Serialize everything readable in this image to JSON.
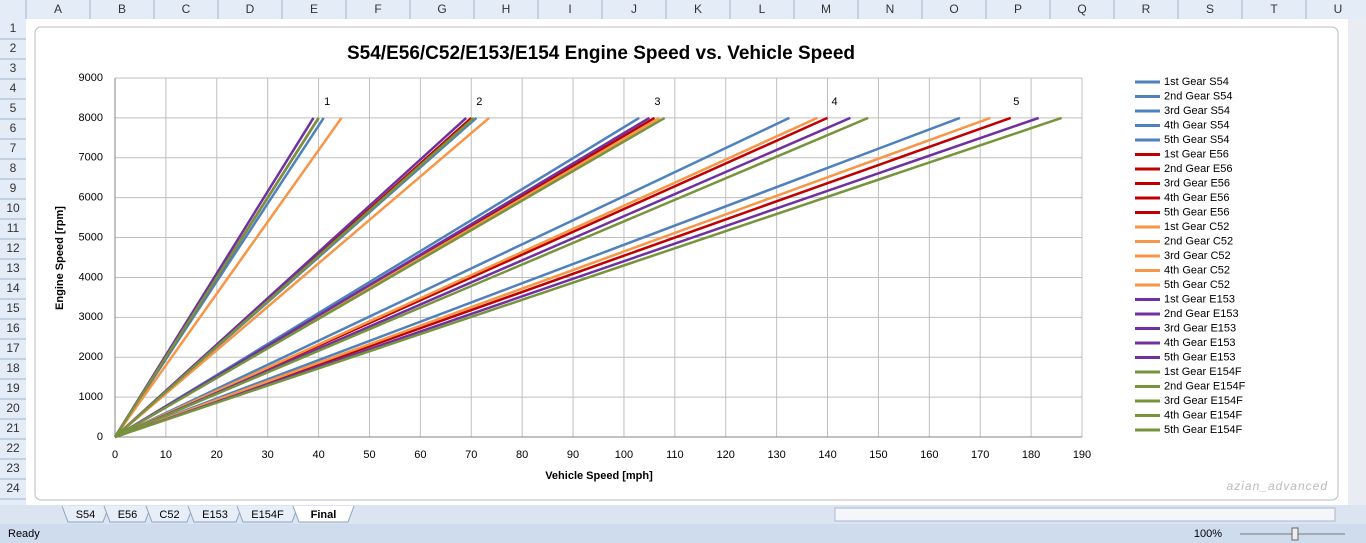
{
  "spreadsheet": {
    "columns": [
      "A",
      "B",
      "C",
      "D",
      "E",
      "F",
      "G",
      "H",
      "I",
      "J",
      "K",
      "L",
      "M",
      "N",
      "O",
      "P",
      "Q",
      "R",
      "S",
      "T",
      "U"
    ],
    "rows": [
      1,
      2,
      3,
      4,
      5,
      6,
      7,
      8,
      9,
      10,
      11,
      12,
      13,
      14,
      15,
      16,
      17,
      18,
      19,
      20,
      21,
      22,
      23,
      24
    ],
    "tabs": [
      "S54",
      "E56",
      "C52",
      "E153",
      "E154F",
      "Final"
    ],
    "status": "Ready",
    "zoom": "100%"
  },
  "watermark": "azian_advanced",
  "chart_data": {
    "type": "line",
    "title": "S54/E56/C52/E153/E154 Engine Speed vs. Vehicle Speed",
    "x_label": "Vehicle Speed [mph]",
    "y_label": "Engine Speed [rpm]",
    "xlim": [
      0,
      190
    ],
    "ylim": [
      0,
      9000
    ],
    "xticks": [
      0,
      10,
      20,
      30,
      40,
      50,
      60,
      70,
      80,
      90,
      100,
      110,
      120,
      130,
      140,
      150,
      160,
      170,
      180,
      190
    ],
    "yticks": [
      0,
      1000,
      2000,
      3000,
      4000,
      5000,
      6000,
      7000,
      8000,
      9000
    ],
    "grid": true,
    "legend": "right",
    "annotations": [
      "1",
      "2",
      "3",
      "4",
      "5"
    ],
    "series": [
      {
        "name": "1st Gear S54",
        "color": "#4f81bd",
        "x": [
          0,
          41
        ],
        "values": [
          0,
          8000
        ]
      },
      {
        "name": "2nd Gear S54",
        "color": "#4f81bd",
        "x": [
          0,
          71
        ],
        "values": [
          0,
          8000
        ]
      },
      {
        "name": "3rd Gear S54",
        "color": "#4f81bd",
        "x": [
          0,
          103
        ],
        "values": [
          0,
          8000
        ]
      },
      {
        "name": "4th Gear S54",
        "color": "#4f81bd",
        "x": [
          0,
          132.5
        ],
        "values": [
          0,
          8000
        ]
      },
      {
        "name": "5th Gear S54",
        "color": "#4f81bd",
        "x": [
          0,
          166
        ],
        "values": [
          0,
          8000
        ]
      },
      {
        "name": "1st Gear E56",
        "color": "#c00000",
        "x": [
          0,
          40
        ],
        "values": [
          0,
          8000
        ]
      },
      {
        "name": "2nd Gear E56",
        "color": "#c00000",
        "x": [
          0,
          70
        ],
        "values": [
          0,
          8000
        ]
      },
      {
        "name": "3rd Gear E56",
        "color": "#c00000",
        "x": [
          0,
          106
        ],
        "values": [
          0,
          8000
        ]
      },
      {
        "name": "4th Gear E56",
        "color": "#c00000",
        "x": [
          0,
          140
        ],
        "values": [
          0,
          8000
        ]
      },
      {
        "name": "5th Gear E56",
        "color": "#c00000",
        "x": [
          0,
          176
        ],
        "values": [
          0,
          8000
        ]
      },
      {
        "name": "1st Gear C52",
        "color": "#f79646",
        "x": [
          0,
          44.5
        ],
        "values": [
          0,
          8000
        ]
      },
      {
        "name": "2nd Gear C52",
        "color": "#f79646",
        "x": [
          0,
          73.5
        ],
        "values": [
          0,
          8000
        ]
      },
      {
        "name": "3rd Gear C52",
        "color": "#f79646",
        "x": [
          0,
          107
        ],
        "values": [
          0,
          8000
        ]
      },
      {
        "name": "4th Gear C52",
        "color": "#f79646",
        "x": [
          0,
          138
        ],
        "values": [
          0,
          8000
        ]
      },
      {
        "name": "5th Gear C52",
        "color": "#f79646",
        "x": [
          0,
          172
        ],
        "values": [
          0,
          8000
        ]
      },
      {
        "name": "1st Gear E153",
        "color": "#7030a0",
        "x": [
          0,
          39
        ],
        "values": [
          0,
          8000
        ]
      },
      {
        "name": "2nd Gear E153",
        "color": "#7030a0",
        "x": [
          0,
          69
        ],
        "values": [
          0,
          8000
        ]
      },
      {
        "name": "3rd Gear E153",
        "color": "#7030a0",
        "x": [
          0,
          105
        ],
        "values": [
          0,
          8000
        ]
      },
      {
        "name": "4th Gear E153",
        "color": "#7030a0",
        "x": [
          0,
          144.5
        ],
        "values": [
          0,
          8000
        ]
      },
      {
        "name": "5th Gear E153",
        "color": "#7030a0",
        "x": [
          0,
          181.5
        ],
        "values": [
          0,
          8000
        ]
      },
      {
        "name": "1st Gear E154F",
        "color": "#77933c",
        "x": [
          0,
          40
        ],
        "values": [
          0,
          8000
        ]
      },
      {
        "name": "2nd Gear E154F",
        "color": "#77933c",
        "x": [
          0,
          70.5
        ],
        "values": [
          0,
          8000
        ]
      },
      {
        "name": "3rd Gear E154F",
        "color": "#77933c",
        "x": [
          0,
          108
        ],
        "values": [
          0,
          8000
        ]
      },
      {
        "name": "4th Gear E154F",
        "color": "#77933c",
        "x": [
          0,
          148
        ],
        "values": [
          0,
          8000
        ]
      },
      {
        "name": "5th Gear E154F",
        "color": "#77933c",
        "x": [
          0,
          186
        ],
        "values": [
          0,
          8000
        ]
      }
    ]
  }
}
